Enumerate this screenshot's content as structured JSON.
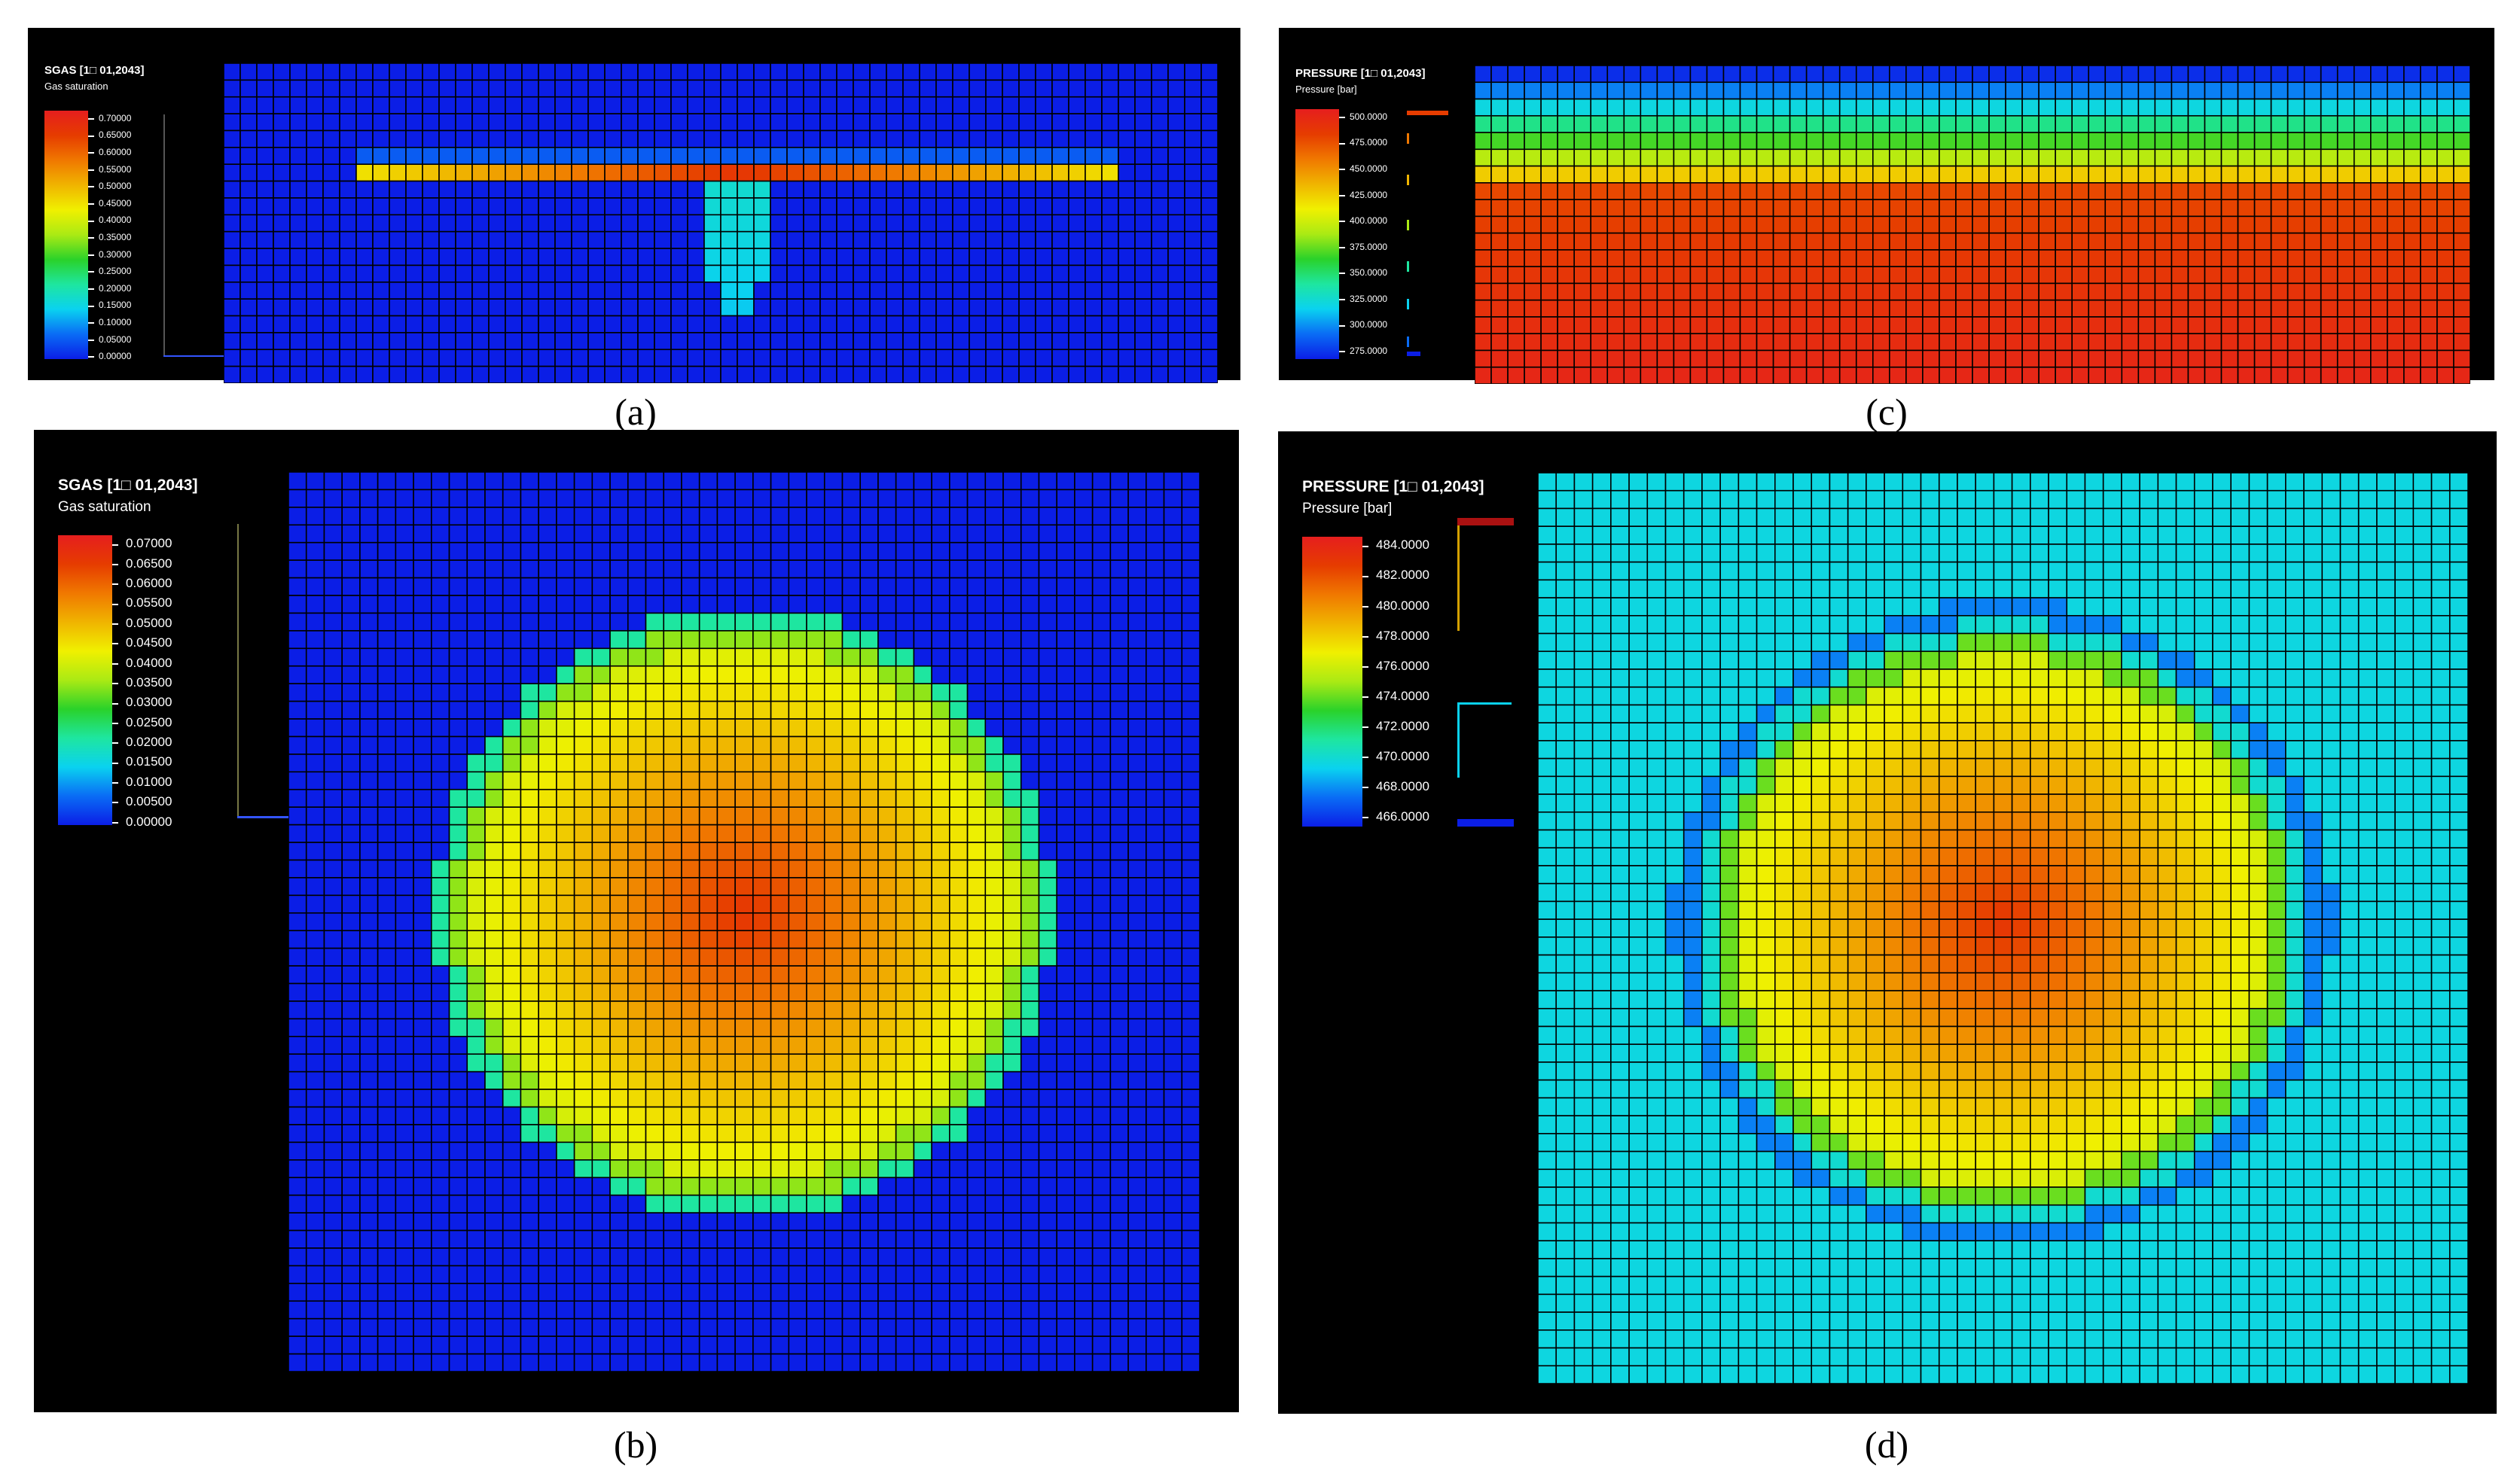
{
  "panels": {
    "a": {
      "caption": "(a)",
      "title": "SGAS [1□ 01,2043]",
      "subtitle": "Gas saturation",
      "ticks": [
        "0.70000",
        "0.65000",
        "0.60000",
        "0.55000",
        "0.50000",
        "0.45000",
        "0.40000",
        "0.35000",
        "0.30000",
        "0.25000",
        "0.20000",
        "0.15000",
        "0.10000",
        "0.05000",
        "0.00000"
      ],
      "grid": {
        "cols": 60,
        "rows": 19
      }
    },
    "b": {
      "caption": "(b)",
      "title": "SGAS [1□ 01,2043]",
      "subtitle": "Gas saturation",
      "ticks": [
        "0.07000",
        "0.06500",
        "0.06000",
        "0.05500",
        "0.05000",
        "0.04500",
        "0.04000",
        "0.03500",
        "0.03000",
        "0.02500",
        "0.02000",
        "0.01500",
        "0.01000",
        "0.00500",
        "0.00000"
      ],
      "grid": {
        "cols": 51,
        "rows": 51
      }
    },
    "c": {
      "caption": "(c)",
      "title": "PRESSURE [1□ 01,2043]",
      "subtitle": "Pressure [bar]",
      "ticks": [
        "500.0000",
        "475.0000",
        "450.0000",
        "425.0000",
        "400.0000",
        "375.0000",
        "350.0000",
        "325.0000",
        "300.0000",
        "275.0000"
      ],
      "grid": {
        "cols": 60,
        "rows": 19
      }
    },
    "d": {
      "caption": "(d)",
      "title": "PRESSURE [1□ 01,2043]",
      "subtitle": "Pressure [bar]",
      "ticks": [
        "484.0000",
        "482.0000",
        "480.0000",
        "478.0000",
        "476.0000",
        "474.0000",
        "472.0000",
        "470.0000",
        "468.0000",
        "466.0000"
      ],
      "grid": {
        "cols": 51,
        "rows": 51
      }
    }
  },
  "colors": {
    "background": "#000000",
    "grid_line": "#000000",
    "colormap": [
      "#0b1ee6",
      "#0a6cf5",
      "#0ad2f0",
      "#1ee6a0",
      "#2ad22a",
      "#aaea14",
      "#f0f000",
      "#f0b400",
      "#f07800",
      "#e63c00",
      "#e61e1e"
    ]
  }
}
